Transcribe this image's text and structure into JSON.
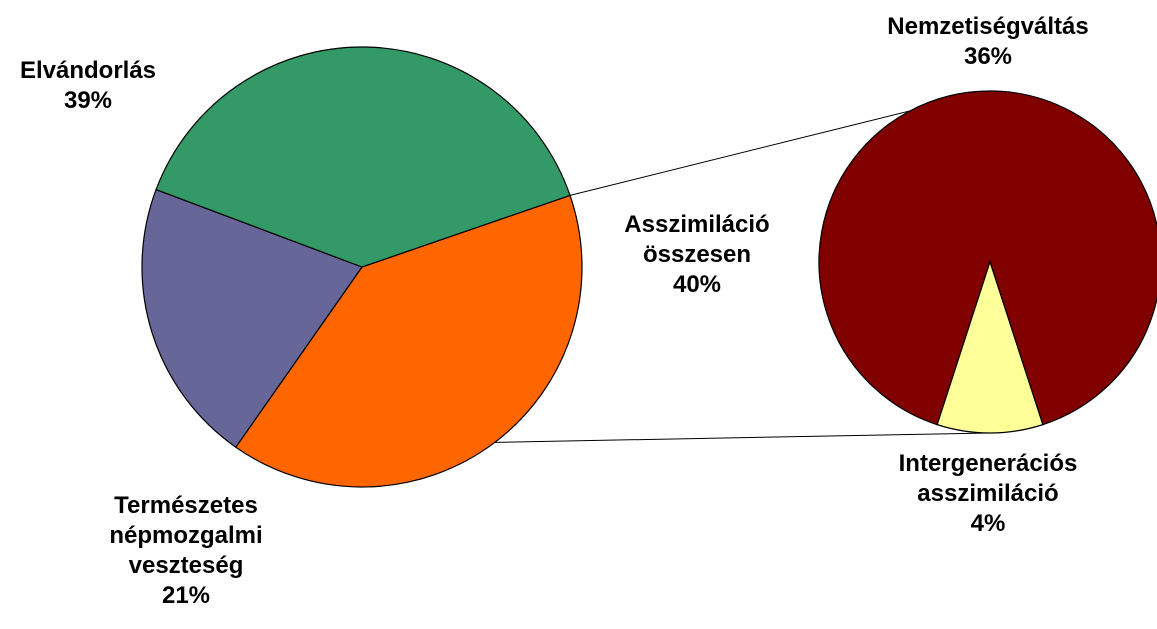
{
  "chart_data": {
    "type": "pie",
    "subtype": "pie-of-pie",
    "main_pie": {
      "slices": [
        {
          "label_lines": [
            "Elvándorlás"
          ],
          "value": 39,
          "value_label": "39%",
          "color": "#339966"
        },
        {
          "label_lines": [
            "Asszimiláció",
            "összesen"
          ],
          "value": 40,
          "value_label": "40%",
          "color": "#FF6600",
          "exploded_to_secondary": true
        },
        {
          "label_lines": [
            "Természetes",
            "népmozgalmi",
            "veszteség"
          ],
          "value": 21,
          "value_label": "21%",
          "color": "#666699"
        }
      ]
    },
    "secondary_pie": {
      "slices": [
        {
          "label_lines": [
            "Nemzetiségváltás"
          ],
          "value": 36,
          "value_label": "36%",
          "color": "#800000"
        },
        {
          "label_lines": [
            "Intergenerációs",
            "asszimiláció"
          ],
          "value": 4,
          "value_label": "4%",
          "color": "#FFFF99"
        }
      ]
    },
    "legend": "none",
    "outline_color": "#000000"
  }
}
